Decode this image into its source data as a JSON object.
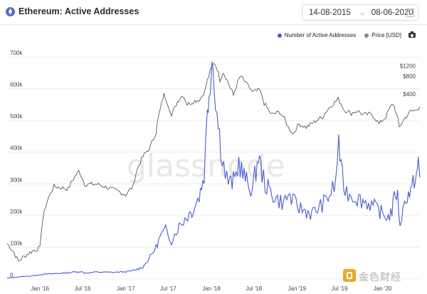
{
  "header": {
    "title": "Ethereum: Active Addresses",
    "date_start": "14-08-2015",
    "date_end": "08-06-2020",
    "arrow": "→"
  },
  "legend": {
    "series1": "Number of Active Addresses",
    "series2": "Price [USD]"
  },
  "watermark": "glassnode",
  "corner_mark": "金色财经",
  "colors": {
    "addresses": "#4a5bd4",
    "price": "#2f2f2f",
    "grid": "#ececec"
  },
  "chart_data": {
    "type": "line",
    "x_tick_labels": [
      "Jan '16",
      "Jul '16",
      "Jan '17",
      "Jul '17",
      "Jan '18",
      "Jul '18",
      "Jan '19",
      "Jul '19",
      "Jan '20"
    ],
    "x_ticks": [
      "2016-01-01",
      "2016-07-01",
      "2017-01-01",
      "2017-07-01",
      "2018-01-01",
      "2018-07-01",
      "2019-01-01",
      "2019-07-01",
      "2020-01-01"
    ],
    "x_range": [
      "2015-08-14",
      "2020-06-08"
    ],
    "y_left": {
      "ticks": [
        0,
        100000,
        200000,
        300000,
        400000,
        500000,
        600000,
        700000
      ],
      "labels": [
        "0",
        "100k",
        "200k",
        "300k",
        "400k",
        "500k",
        "600k",
        "700k"
      ],
      "range": [
        0,
        700000
      ]
    },
    "y_right": {
      "ticks": [
        400,
        800,
        1200
      ],
      "labels": [
        "$400",
        "$800",
        "$1200"
      ],
      "scale": "log"
    },
    "grid": "horizontal",
    "legend_position": "top-right",
    "series": [
      {
        "name": "Number of Active Addresses",
        "axis": "left",
        "color": "#4a5bd4",
        "points": [
          [
            "2015-08-14",
            3000
          ],
          [
            "2015-10-01",
            7000
          ],
          [
            "2015-12-01",
            10000
          ],
          [
            "2016-01-01",
            14000
          ],
          [
            "2016-03-01",
            17000
          ],
          [
            "2016-05-01",
            20000
          ],
          [
            "2016-06-20",
            24000
          ],
          [
            "2016-07-10",
            19000
          ],
          [
            "2016-09-01",
            22000
          ],
          [
            "2016-11-01",
            21000
          ],
          [
            "2017-01-01",
            23000
          ],
          [
            "2017-02-01",
            26000
          ],
          [
            "2017-03-15",
            38000
          ],
          [
            "2017-04-15",
            70000
          ],
          [
            "2017-05-10",
            100000
          ],
          [
            "2017-05-28",
            135000
          ],
          [
            "2017-06-20",
            155000
          ],
          [
            "2017-07-15",
            120000
          ],
          [
            "2017-08-10",
            160000
          ],
          [
            "2017-09-10",
            190000
          ],
          [
            "2017-10-10",
            215000
          ],
          [
            "2017-11-10",
            260000
          ],
          [
            "2017-12-01",
            330000
          ],
          [
            "2017-12-15",
            520000
          ],
          [
            "2017-12-22",
            600000
          ],
          [
            "2018-01-03",
            700000
          ],
          [
            "2018-01-12",
            650000
          ],
          [
            "2018-01-25",
            520000
          ],
          [
            "2018-02-10",
            420000
          ],
          [
            "2018-03-01",
            330000
          ],
          [
            "2018-03-20",
            300000
          ],
          [
            "2018-04-10",
            310000
          ],
          [
            "2018-04-28",
            370000
          ],
          [
            "2018-05-15",
            330000
          ],
          [
            "2018-06-05",
            300000
          ],
          [
            "2018-06-25",
            285000
          ],
          [
            "2018-07-10",
            340000
          ],
          [
            "2018-07-20",
            390000
          ],
          [
            "2018-08-05",
            330000
          ],
          [
            "2018-08-25",
            290000
          ],
          [
            "2018-09-15",
            270000
          ],
          [
            "2018-10-10",
            250000
          ],
          [
            "2018-11-05",
            240000
          ],
          [
            "2018-11-25",
            265000
          ],
          [
            "2018-12-15",
            245000
          ],
          [
            "2019-01-10",
            225000
          ],
          [
            "2019-02-05",
            215000
          ],
          [
            "2019-03-05",
            205000
          ],
          [
            "2019-04-05",
            225000
          ],
          [
            "2019-04-25",
            240000
          ],
          [
            "2019-05-20",
            265000
          ],
          [
            "2019-06-15",
            300000
          ],
          [
            "2019-06-28",
            445000
          ],
          [
            "2019-07-08",
            340000
          ],
          [
            "2019-07-25",
            280000
          ],
          [
            "2019-08-20",
            265000
          ],
          [
            "2019-09-15",
            255000
          ],
          [
            "2019-10-15",
            245000
          ],
          [
            "2019-11-15",
            235000
          ],
          [
            "2019-12-15",
            215000
          ],
          [
            "2020-01-05",
            205000
          ],
          [
            "2020-01-25",
            195000
          ],
          [
            "2020-02-10",
            215000
          ],
          [
            "2020-02-25",
            275000
          ],
          [
            "2020-03-05",
            260000
          ],
          [
            "2020-03-15",
            175000
          ],
          [
            "2020-03-28",
            215000
          ],
          [
            "2020-04-10",
            260000
          ],
          [
            "2020-04-25",
            270000
          ],
          [
            "2020-05-05",
            280000
          ],
          [
            "2020-05-15",
            315000
          ],
          [
            "2020-05-25",
            330000
          ],
          [
            "2020-06-01",
            360000
          ],
          [
            "2020-06-08",
            320000
          ]
        ]
      },
      {
        "name": "Price [USD]",
        "axis": "right",
        "color": "#2f2f2f",
        "points": [
          [
            "2015-08-14",
            1.2
          ],
          [
            "2015-10-01",
            0.6
          ],
          [
            "2015-12-01",
            0.9
          ],
          [
            "2016-01-01",
            1
          ],
          [
            "2016-03-01",
            11
          ],
          [
            "2016-05-01",
            10
          ],
          [
            "2016-06-15",
            20
          ],
          [
            "2016-07-10",
            12
          ],
          [
            "2016-09-01",
            12
          ],
          [
            "2016-11-01",
            10
          ],
          [
            "2017-01-01",
            8
          ],
          [
            "2017-02-01",
            11
          ],
          [
            "2017-03-15",
            35
          ],
          [
            "2017-04-15",
            50
          ],
          [
            "2017-05-10",
            90
          ],
          [
            "2017-05-28",
            220
          ],
          [
            "2017-06-13",
            390
          ],
          [
            "2017-07-15",
            170
          ],
          [
            "2017-08-10",
            300
          ],
          [
            "2017-09-01",
            390
          ],
          [
            "2017-09-20",
            270
          ],
          [
            "2017-10-15",
            300
          ],
          [
            "2017-11-15",
            330
          ],
          [
            "2017-12-05",
            460
          ],
          [
            "2017-12-20",
            790
          ],
          [
            "2018-01-13",
            1380
          ],
          [
            "2018-01-25",
            1100
          ],
          [
            "2018-02-06",
            700
          ],
          [
            "2018-02-20",
            950
          ],
          [
            "2018-03-15",
            600
          ],
          [
            "2018-04-05",
            380
          ],
          [
            "2018-05-05",
            800
          ],
          [
            "2018-05-30",
            600
          ],
          [
            "2018-06-25",
            430
          ],
          [
            "2018-07-25",
            470
          ],
          [
            "2018-08-14",
            280
          ],
          [
            "2018-09-12",
            180
          ],
          [
            "2018-10-20",
            200
          ],
          [
            "2018-11-25",
            110
          ],
          [
            "2018-12-15",
            85
          ],
          [
            "2019-01-10",
            125
          ],
          [
            "2019-02-10",
            110
          ],
          [
            "2019-03-15",
            135
          ],
          [
            "2019-04-20",
            165
          ],
          [
            "2019-05-30",
            265
          ],
          [
            "2019-06-26",
            330
          ],
          [
            "2019-07-20",
            220
          ],
          [
            "2019-08-20",
            190
          ],
          [
            "2019-09-15",
            210
          ],
          [
            "2019-10-10",
            180
          ],
          [
            "2019-11-15",
            185
          ],
          [
            "2019-12-17",
            125
          ],
          [
            "2020-01-15",
            165
          ],
          [
            "2020-02-14",
            280
          ],
          [
            "2020-03-12",
            110
          ],
          [
            "2020-03-25",
            135
          ],
          [
            "2020-04-30",
            205
          ],
          [
            "2020-05-20",
            210
          ],
          [
            "2020-06-08",
            245
          ]
        ]
      }
    ]
  }
}
